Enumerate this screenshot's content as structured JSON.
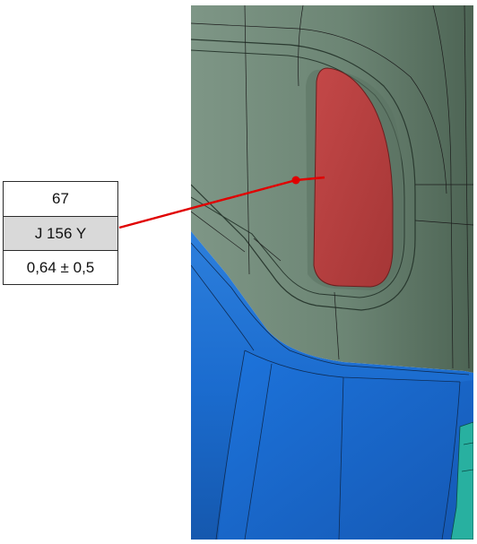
{
  "annotation": {
    "point_number": "67",
    "point_id": "J 156 Y",
    "deviation": "0,64 ± 0,5"
  },
  "colors": {
    "panel_green": "#6f8878",
    "feature_red": "#b84242",
    "part_blue": "#1a68c6",
    "part_teal": "#28b0a0",
    "leader_line": "#e00000",
    "edge_lines": "#1a1a1a"
  },
  "icons": {
    "measurement_point": "red-dot-marker"
  }
}
